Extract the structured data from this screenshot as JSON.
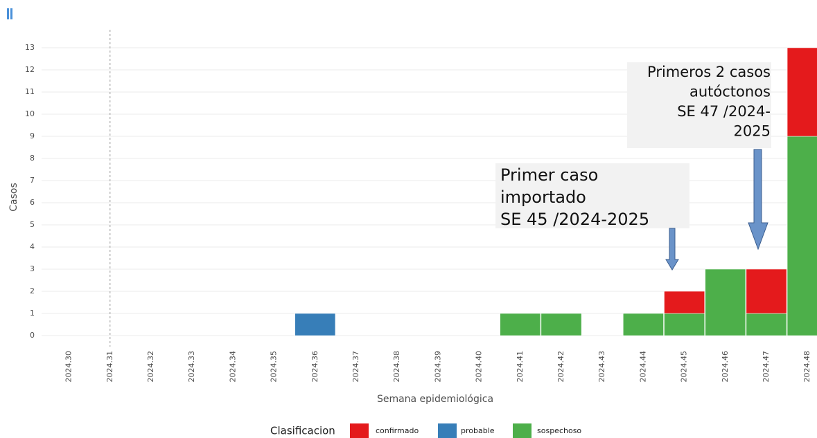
{
  "chart_data": {
    "type": "stacked_bar",
    "categories": [
      "2024.30",
      "2024.31",
      "2024.32",
      "2024.33",
      "2024.34",
      "2024.35",
      "2024.36",
      "2024.37",
      "2024.38",
      "2024.39",
      "2024.40",
      "2024.41",
      "2024.42",
      "2024.43",
      "2024.44",
      "2024.45",
      "2024.46",
      "2024.47",
      "2024.48"
    ],
    "series": [
      {
        "name": "sospechoso",
        "color": "#4daf4a",
        "values": [
          0,
          0,
          0,
          0,
          0,
          0,
          0,
          0,
          0,
          0,
          0,
          1,
          1,
          0,
          1,
          1,
          3,
          1,
          9
        ]
      },
      {
        "name": "confirmado",
        "color": "#e41a1c",
        "values": [
          0,
          0,
          0,
          0,
          0,
          0,
          0,
          0,
          0,
          0,
          0,
          0,
          0,
          0,
          0,
          1,
          0,
          2,
          4
        ]
      },
      {
        "name": "probable",
        "color": "#377eb8",
        "values": [
          0,
          0,
          0,
          0,
          0,
          0,
          1,
          0,
          0,
          0,
          0,
          0,
          0,
          0,
          0,
          0,
          0,
          0,
          0
        ]
      }
    ],
    "legend_order": [
      1,
      2,
      0
    ],
    "legend_title": "Clasificacion",
    "x_label": "Semana epidemiológica",
    "y_label": "Casos",
    "ylim": [
      -0.5,
      13.5
    ],
    "yticks": [
      0,
      1,
      2,
      3,
      4,
      5,
      6,
      7,
      8,
      9,
      10,
      11,
      12,
      13
    ],
    "grid": true,
    "vline": "2024.31",
    "annotations": [
      {
        "lines": [
          "Primer caso",
          "importado",
          "SE 45 /2024-2025"
        ]
      },
      {
        "lines": [
          "Primeros 2 casos",
          "autóctonos",
          "SE 47 /2024-",
          "2025"
        ]
      }
    ]
  }
}
